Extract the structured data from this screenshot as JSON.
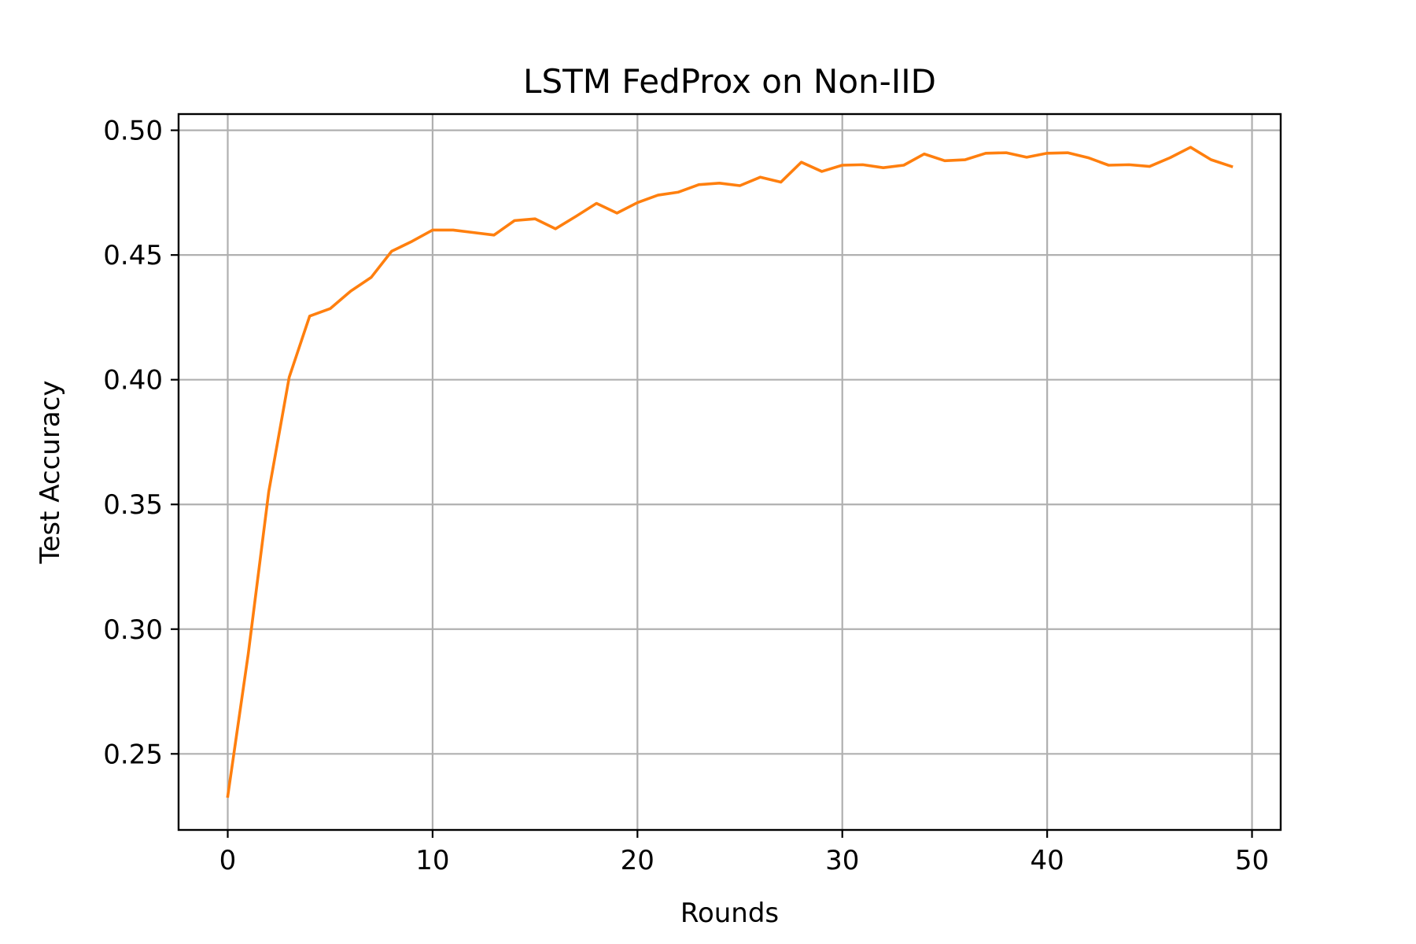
{
  "chart_data": {
    "type": "line",
    "title": "LSTM FedProx on Non-IID",
    "xlabel": "Rounds",
    "ylabel": "Test Accuracy",
    "xlim": [
      -2.4,
      51.4
    ],
    "ylim": [
      0.2195,
      0.5065
    ],
    "xticks": [
      0,
      10,
      20,
      30,
      40,
      50
    ],
    "xtick_labels": [
      "0",
      "10",
      "20",
      "30",
      "40",
      "50"
    ],
    "yticks": [
      0.25,
      0.3,
      0.35,
      0.4,
      0.45,
      0.5
    ],
    "ytick_labels": [
      "0.25",
      "0.30",
      "0.35",
      "0.40",
      "0.45",
      "0.50"
    ],
    "grid": true,
    "series": [
      {
        "color": "#ff7f0e",
        "x": [
          0,
          1,
          2,
          3,
          4,
          5,
          6,
          7,
          8,
          9,
          10,
          11,
          12,
          13,
          14,
          15,
          16,
          17,
          18,
          19,
          20,
          21,
          22,
          23,
          24,
          25,
          26,
          27,
          28,
          29,
          30,
          31,
          32,
          33,
          34,
          35,
          36,
          37,
          38,
          39,
          40,
          41,
          42,
          43,
          44,
          45,
          46,
          47,
          48,
          49
        ],
        "y": [
          0.233,
          0.29,
          0.355,
          0.401,
          0.4255,
          0.4285,
          0.4355,
          0.441,
          0.4515,
          0.4555,
          0.46,
          0.46,
          0.459,
          0.458,
          0.4638,
          0.4645,
          0.4605,
          0.4655,
          0.4707,
          0.4668,
          0.471,
          0.474,
          0.4752,
          0.4782,
          0.4788,
          0.4778,
          0.4812,
          0.4792,
          0.4872,
          0.4835,
          0.486,
          0.4862,
          0.485,
          0.486,
          0.4905,
          0.4878,
          0.4882,
          0.4908,
          0.491,
          0.4892,
          0.4908,
          0.491,
          0.489,
          0.486,
          0.4862,
          0.4855,
          0.489,
          0.4932,
          0.4882,
          0.4855
        ]
      }
    ]
  }
}
